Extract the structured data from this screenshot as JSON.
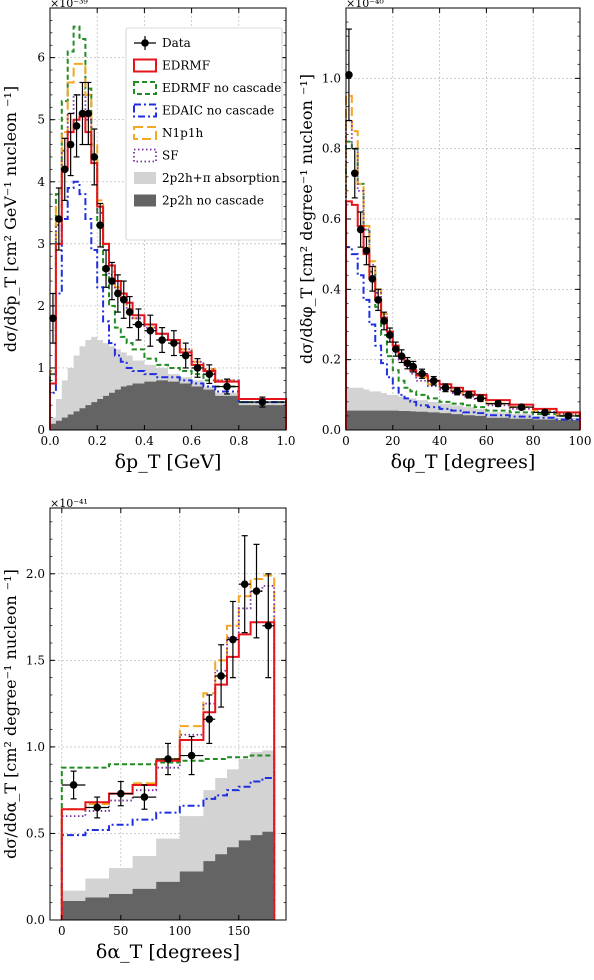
{
  "colors": {
    "data": "#000000",
    "edrmf": "#e8141c",
    "edrmf_nocascade": "#228b22",
    "edaic_nocascade": "#1f2fe0",
    "n1p1h": "#f5a623",
    "sf": "#7b2fa0",
    "absorption_fill": "#d3d3d3",
    "nocascade_fill": "#646464"
  },
  "legend": {
    "position": "top-right of panel 1",
    "entries": [
      {
        "key": "data",
        "label": "Data",
        "style": "errorbar"
      },
      {
        "key": "edrmf",
        "label": "EDRMF",
        "style": "solid"
      },
      {
        "key": "edrmf_nocascade",
        "label": "EDRMF no cascade",
        "style": "dashed"
      },
      {
        "key": "edaic_nocascade",
        "label": "EDAIC no cascade",
        "style": "dashdot"
      },
      {
        "key": "n1p1h",
        "label": "N1p1h",
        "style": "longdash"
      },
      {
        "key": "sf",
        "label": "SF",
        "style": "dotted"
      },
      {
        "key": "absorption_fill",
        "label": "2p2h+π absorption",
        "style": "fill"
      },
      {
        "key": "nocascade_fill",
        "label": "2p2h no cascade",
        "style": "fill"
      }
    ]
  },
  "chart_data": [
    {
      "type": "step-histogram",
      "xlabel": "δp_T [GeV]",
      "ylabel": "dσ/dδp_T [cm² GeV⁻¹ nucleon ⁻¹]",
      "multiplier": "×10⁻³⁹",
      "xlim": [
        0,
        1.0
      ],
      "ylim": [
        0,
        6.8
      ],
      "grid": true,
      "xticks": [
        0,
        0.2,
        0.4,
        0.6,
        0.8,
        1.0
      ],
      "xtick_labels": [
        "0.0",
        "0.2",
        "0.4",
        "0.6",
        "0.8",
        "1.0"
      ],
      "yticks": [
        0,
        1,
        2,
        3,
        4,
        5,
        6
      ],
      "ytick_labels": [
        "0",
        "1",
        "2",
        "3",
        "4",
        "5",
        "6"
      ],
      "edges": [
        0,
        0.025,
        0.05,
        0.075,
        0.1,
        0.125,
        0.15,
        0.175,
        0.2,
        0.225,
        0.25,
        0.275,
        0.3,
        0.325,
        0.35,
        0.4,
        0.45,
        0.5,
        0.55,
        0.6,
        0.65,
        0.7,
        0.8,
        1.0
      ],
      "data": {
        "x": [
          0.0125,
          0.0375,
          0.0625,
          0.0875,
          0.1125,
          0.1375,
          0.1625,
          0.1875,
          0.2125,
          0.2375,
          0.2625,
          0.2875,
          0.3125,
          0.3375,
          0.375,
          0.425,
          0.475,
          0.525,
          0.575,
          0.625,
          0.675,
          0.75,
          0.9
        ],
        "y": [
          1.8,
          3.4,
          4.2,
          4.6,
          4.9,
          5.1,
          5.1,
          4.4,
          3.3,
          2.6,
          2.4,
          2.2,
          2.1,
          1.9,
          1.7,
          1.6,
          1.45,
          1.4,
          1.2,
          1.0,
          0.9,
          0.7,
          0.45
        ],
        "err": [
          0.4,
          0.5,
          0.5,
          0.5,
          0.5,
          0.5,
          0.5,
          0.45,
          0.35,
          0.3,
          0.3,
          0.3,
          0.3,
          0.25,
          0.25,
          0.25,
          0.2,
          0.2,
          0.2,
          0.15,
          0.15,
          0.12,
          0.08
        ]
      },
      "series": [
        {
          "key": "absorption_fill",
          "kind": "fill",
          "values": [
            0.2,
            0.5,
            0.8,
            1.0,
            1.2,
            1.35,
            1.45,
            1.5,
            1.45,
            1.4,
            1.35,
            1.3,
            1.25,
            1.2,
            1.12,
            1.05,
            1.0,
            0.9,
            0.85,
            0.8,
            0.7,
            0.6,
            0.45
          ]
        },
        {
          "key": "nocascade_fill",
          "kind": "fill",
          "values": [
            0.1,
            0.15,
            0.2,
            0.25,
            0.3,
            0.35,
            0.4,
            0.45,
            0.5,
            0.55,
            0.6,
            0.65,
            0.7,
            0.72,
            0.75,
            0.78,
            0.8,
            0.78,
            0.75,
            0.7,
            0.65,
            0.55,
            0.4
          ]
        },
        {
          "key": "edrmf_nocascade",
          "kind": "dashed",
          "values": [
            0.9,
            3.8,
            5.3,
            6.1,
            6.5,
            6.3,
            5.5,
            4.4,
            3.3,
            2.5,
            2.0,
            1.65,
            1.5,
            1.4,
            1.3,
            1.15,
            1.05,
            1.0,
            0.95,
            0.9,
            0.8,
            0.7,
            0.45
          ]
        },
        {
          "key": "edaic_nocascade",
          "kind": "dashdot",
          "values": [
            0.6,
            2.2,
            3.4,
            3.9,
            4.0,
            3.8,
            3.4,
            2.9,
            2.3,
            1.75,
            1.4,
            1.2,
            1.1,
            1.0,
            0.95,
            0.9,
            0.85,
            0.85,
            0.8,
            0.75,
            0.7,
            0.62,
            0.45
          ]
        },
        {
          "key": "n1p1h",
          "kind": "longdash",
          "values": [
            0.95,
            3.6,
            4.8,
            5.6,
            5.9,
            5.9,
            5.4,
            4.6,
            3.7,
            3.0,
            2.55,
            2.3,
            2.1,
            1.95,
            1.8,
            1.65,
            1.55,
            1.45,
            1.3,
            1.1,
            0.98,
            0.8,
            0.5
          ]
        },
        {
          "key": "sf",
          "kind": "dotted",
          "values": [
            0.9,
            3.3,
            4.5,
            5.1,
            5.4,
            5.4,
            5.0,
            4.3,
            3.5,
            2.9,
            2.5,
            2.25,
            2.1,
            1.95,
            1.8,
            1.65,
            1.55,
            1.45,
            1.3,
            1.1,
            0.98,
            0.8,
            0.5
          ]
        },
        {
          "key": "edrmf",
          "kind": "solid",
          "values": [
            0.75,
            3.0,
            4.2,
            4.8,
            5.0,
            5.05,
            4.8,
            4.3,
            3.6,
            3.0,
            2.65,
            2.4,
            2.2,
            2.05,
            1.85,
            1.7,
            1.55,
            1.45,
            1.25,
            1.05,
            0.95,
            0.78,
            0.5
          ]
        }
      ]
    },
    {
      "type": "step-histogram",
      "xlabel": "δφ_T [degrees]",
      "ylabel": "dσ/dδφ_T [cm² degree⁻¹ nucleon ⁻¹]",
      "multiplier": "×10⁻⁴⁰",
      "xlim": [
        0,
        100
      ],
      "ylim": [
        0,
        1.2
      ],
      "grid": true,
      "xticks": [
        0,
        20,
        40,
        60,
        80,
        100
      ],
      "xtick_labels": [
        "0",
        "20",
        "40",
        "60",
        "80",
        "100"
      ],
      "yticks": [
        0,
        0.2,
        0.4,
        0.6,
        0.8,
        1.0
      ],
      "ytick_labels": [
        "0.0",
        "0.2",
        "0.4",
        "0.6",
        "0.8",
        "1.0"
      ],
      "edges": [
        0,
        2.5,
        5,
        7.5,
        10,
        12.5,
        15,
        17.5,
        20,
        22.5,
        25,
        27.5,
        30,
        35,
        40,
        45,
        50,
        55,
        60,
        70,
        80,
        90,
        100
      ],
      "data": {
        "x": [
          1.25,
          3.75,
          6.25,
          8.75,
          11.25,
          13.75,
          16.25,
          18.75,
          21.25,
          23.75,
          26.25,
          28.75,
          32.5,
          37.5,
          42.5,
          47.5,
          52.5,
          57.5,
          65,
          75,
          85,
          95
        ],
        "y": [
          1.01,
          0.73,
          0.57,
          0.51,
          0.43,
          0.37,
          0.31,
          0.27,
          0.23,
          0.21,
          0.19,
          0.18,
          0.16,
          0.14,
          0.12,
          0.11,
          0.1,
          0.09,
          0.075,
          0.065,
          0.05,
          0.04
        ],
        "err": [
          0.13,
          0.07,
          0.05,
          0.04,
          0.035,
          0.03,
          0.025,
          0.02,
          0.02,
          0.018,
          0.016,
          0.015,
          0.013,
          0.012,
          0.011,
          0.01,
          0.009,
          0.009,
          0.008,
          0.007,
          0.006,
          0.005
        ]
      },
      "series": [
        {
          "key": "absorption_fill",
          "kind": "fill",
          "values": [
            0.12,
            0.12,
            0.12,
            0.115,
            0.11,
            0.11,
            0.105,
            0.1,
            0.1,
            0.095,
            0.09,
            0.09,
            0.085,
            0.08,
            0.075,
            0.07,
            0.065,
            0.06,
            0.05,
            0.045,
            0.04,
            0.035
          ]
        },
        {
          "key": "nocascade_fill",
          "kind": "fill",
          "values": [
            0.055,
            0.055,
            0.055,
            0.055,
            0.055,
            0.055,
            0.055,
            0.055,
            0.055,
            0.054,
            0.054,
            0.053,
            0.052,
            0.05,
            0.048,
            0.045,
            0.042,
            0.04,
            0.035,
            0.032,
            0.03,
            0.028
          ]
        },
        {
          "key": "edrmf_nocascade",
          "kind": "dashed",
          "values": [
            0.82,
            0.8,
            0.7,
            0.57,
            0.45,
            0.35,
            0.27,
            0.21,
            0.17,
            0.14,
            0.12,
            0.11,
            0.1,
            0.09,
            0.08,
            0.075,
            0.07,
            0.065,
            0.055,
            0.05,
            0.045,
            0.04
          ]
        },
        {
          "key": "edaic_nocascade",
          "kind": "dashdot",
          "values": [
            0.52,
            0.5,
            0.44,
            0.37,
            0.3,
            0.24,
            0.19,
            0.15,
            0.12,
            0.1,
            0.09,
            0.08,
            0.07,
            0.065,
            0.06,
            0.055,
            0.05,
            0.048,
            0.042,
            0.038,
            0.035,
            0.03
          ]
        },
        {
          "key": "n1p1h",
          "kind": "longdash",
          "values": [
            0.95,
            0.85,
            0.7,
            0.58,
            0.48,
            0.4,
            0.33,
            0.28,
            0.24,
            0.21,
            0.19,
            0.17,
            0.15,
            0.13,
            0.12,
            0.11,
            0.1,
            0.09,
            0.075,
            0.065,
            0.055,
            0.045
          ]
        },
        {
          "key": "sf",
          "kind": "dotted",
          "values": [
            0.88,
            0.8,
            0.68,
            0.57,
            0.47,
            0.39,
            0.32,
            0.27,
            0.23,
            0.2,
            0.18,
            0.16,
            0.14,
            0.125,
            0.115,
            0.105,
            0.095,
            0.085,
            0.07,
            0.06,
            0.052,
            0.045
          ]
        },
        {
          "key": "edrmf",
          "kind": "solid",
          "values": [
            0.65,
            0.64,
            0.58,
            0.5,
            0.43,
            0.37,
            0.32,
            0.28,
            0.24,
            0.21,
            0.19,
            0.17,
            0.155,
            0.14,
            0.13,
            0.12,
            0.11,
            0.1,
            0.085,
            0.072,
            0.06,
            0.05
          ]
        }
      ]
    },
    {
      "type": "step-histogram",
      "xlabel": "δα_T [degrees]",
      "ylabel": "dσ/dδα_T [cm² degree⁻¹ nucleon ⁻¹]",
      "multiplier": "×10⁻⁴¹",
      "xlim": [
        -10,
        190
      ],
      "ylim": [
        0,
        2.38
      ],
      "grid": true,
      "xticks": [
        0,
        50,
        100,
        150
      ],
      "xtick_labels": [
        "0",
        "50",
        "100",
        "150"
      ],
      "yticks": [
        0,
        0.5,
        1.0,
        1.5,
        2.0
      ],
      "ytick_labels": [
        "0.0",
        "0.5",
        "1.0",
        "1.5",
        "2.0"
      ],
      "edges": [
        0,
        20,
        40,
        60,
        80,
        100,
        120,
        130,
        140,
        150,
        160,
        170,
        180
      ],
      "data": {
        "x": [
          10,
          30,
          50,
          70,
          90,
          110,
          125,
          135,
          145,
          155,
          165,
          175
        ],
        "y": [
          0.78,
          0.65,
          0.73,
          0.71,
          0.93,
          0.95,
          1.16,
          1.41,
          1.62,
          1.94,
          1.9,
          1.7
        ],
        "err": [
          0.08,
          0.06,
          0.07,
          0.07,
          0.09,
          0.11,
          0.14,
          0.18,
          0.22,
          0.28,
          0.27,
          0.3
        ]
      },
      "series": [
        {
          "key": "absorption_fill",
          "kind": "fill",
          "values": [
            0.17,
            0.24,
            0.3,
            0.37,
            0.47,
            0.6,
            0.75,
            0.82,
            0.87,
            0.93,
            0.97,
            0.98
          ]
        },
        {
          "key": "nocascade_fill",
          "kind": "fill",
          "values": [
            0.11,
            0.13,
            0.15,
            0.18,
            0.22,
            0.28,
            0.34,
            0.38,
            0.42,
            0.46,
            0.49,
            0.51
          ]
        },
        {
          "key": "edrmf_nocascade",
          "kind": "dashed",
          "values": [
            0.88,
            0.88,
            0.9,
            0.9,
            0.91,
            0.92,
            0.93,
            0.93,
            0.94,
            0.94,
            0.95,
            0.95
          ]
        },
        {
          "key": "edaic_nocascade",
          "kind": "dashdot",
          "values": [
            0.49,
            0.52,
            0.55,
            0.58,
            0.62,
            0.66,
            0.7,
            0.72,
            0.75,
            0.77,
            0.8,
            0.82
          ]
        },
        {
          "key": "n1p1h",
          "kind": "longdash",
          "values": [
            0.64,
            0.67,
            0.73,
            0.79,
            0.93,
            1.12,
            1.31,
            1.5,
            1.7,
            1.87,
            1.97,
            1.99
          ]
        },
        {
          "key": "sf",
          "kind": "dotted",
          "values": [
            0.6,
            0.63,
            0.69,
            0.75,
            0.88,
            1.07,
            1.25,
            1.44,
            1.63,
            1.8,
            1.9,
            1.93
          ]
        },
        {
          "key": "edrmf",
          "kind": "solid",
          "values": [
            0.64,
            0.68,
            0.73,
            0.78,
            0.92,
            1.04,
            1.2,
            1.36,
            1.52,
            1.65,
            1.72,
            1.72
          ]
        }
      ]
    }
  ]
}
